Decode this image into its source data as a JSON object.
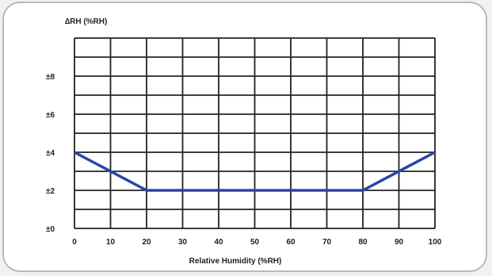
{
  "chart_data": {
    "type": "line",
    "title": "",
    "ylabel": "∆RH (%RH)",
    "xlabel": "Relative Humidity (%RH)",
    "xlim": [
      0,
      100
    ],
    "ylim": [
      0,
      10
    ],
    "x_ticks": [
      0,
      10,
      20,
      30,
      40,
      50,
      60,
      70,
      80,
      90,
      100
    ],
    "x_tick_labels": [
      "0",
      "10",
      "20",
      "30",
      "40",
      "50",
      "60",
      "70",
      "80",
      "90",
      "100"
    ],
    "y_ticks": [
      0,
      2,
      4,
      6,
      8
    ],
    "y_tick_labels": [
      "±0",
      "±2",
      "±4",
      "±6",
      "±8"
    ],
    "grid": true,
    "legend": "none",
    "series": [
      {
        "x": [
          0,
          20,
          80,
          100
        ],
        "values": [
          4,
          2,
          2,
          4
        ]
      }
    ],
    "colors": {
      "line": "#2b44a8",
      "grid": "#222222",
      "background": "#ffffff",
      "frame": "#b9b9b9"
    }
  }
}
